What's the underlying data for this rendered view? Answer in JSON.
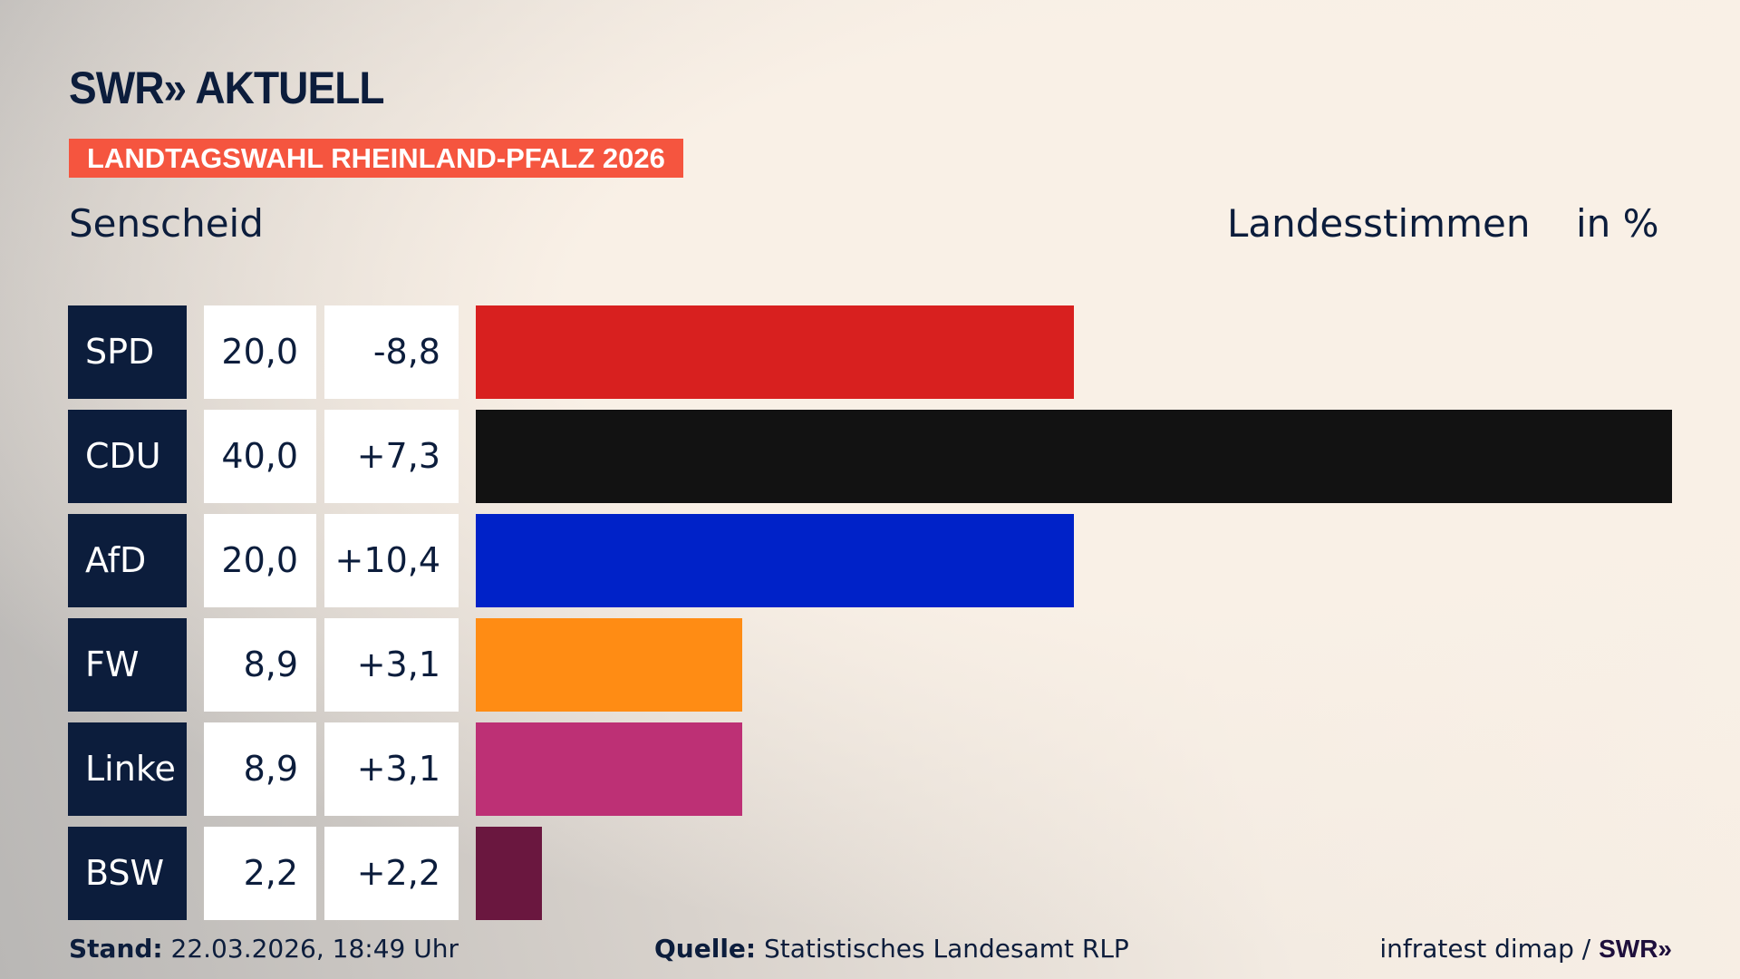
{
  "header": {
    "logo": "SWR» AKTUELL",
    "banner": "LANDTAGSWAHL RHEINLAND-PFALZ 2026",
    "location": "Senscheid",
    "metric": "Landesstimmen",
    "unit": "in %"
  },
  "chart_data": {
    "type": "bar",
    "orientation": "horizontal",
    "categories": [
      "SPD",
      "CDU",
      "AfD",
      "FW",
      "Linke",
      "BSW"
    ],
    "values": [
      20.0,
      40.0,
      20.0,
      8.9,
      8.9,
      2.2
    ],
    "value_labels": [
      "20,0",
      "40,0",
      "20,0",
      "8,9",
      "8,9",
      "2,2"
    ],
    "change_labels": [
      "-8,8",
      "+7,3",
      "+10,4",
      "+3,1",
      "+3,1",
      "+2,2"
    ],
    "changes": [
      -8.8,
      7.3,
      10.4,
      3.1,
      3.1,
      2.2
    ],
    "colors": [
      "#d8201f",
      "#121212",
      "#0022c8",
      "#ff8c14",
      "#bd3075",
      "#6a173f"
    ],
    "xlim": [
      0,
      40
    ],
    "grid": false,
    "legend": "none"
  },
  "footer": {
    "stand_label": "Stand:",
    "stand_value": "22.03.2026, 18:49 Uhr",
    "source_label": "Quelle:",
    "source_value": "Statistisches Landesamt RLP",
    "credit": "infratest dimap /",
    "credit_logo": "SWR»"
  }
}
